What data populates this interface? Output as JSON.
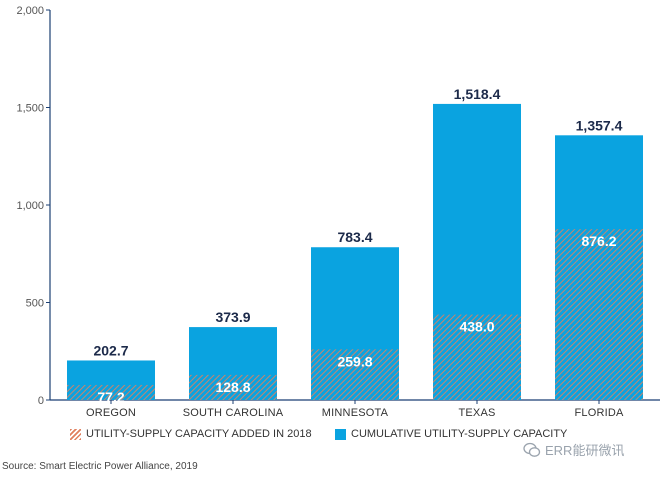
{
  "chart_data": {
    "type": "bar",
    "stacked": true,
    "categories": [
      "OREGON",
      "SOUTH CAROLINA",
      "MINNESOTA",
      "TEXAS",
      "FLORIDA"
    ],
    "series": [
      {
        "name": "UTILITY-SUPPLY CAPACITY ADDED IN 2018",
        "values": [
          77.2,
          128.8,
          259.8,
          438.0,
          876.2
        ],
        "labels": [
          "77.2",
          "128.8",
          "259.8",
          "438.0",
          "876.2"
        ]
      },
      {
        "name": "CUMULATIVE UTILITY-SUPPLY CAPACITY",
        "values": [
          202.7,
          373.9,
          783.4,
          1518.4,
          1357.4
        ],
        "labels": [
          "202.7",
          "373.9",
          "783.4",
          "1,518.4",
          "1,357.4"
        ]
      }
    ],
    "yticks": [
      0,
      500,
      1000,
      1500,
      2000
    ],
    "ytick_labels": [
      "0",
      "500",
      "1,000",
      "1,500",
      "2,000"
    ],
    "ylim": [
      0,
      2000
    ],
    "title": "",
    "xlabel": "",
    "ylabel": "",
    "legend_position": "bottom"
  },
  "colors": {
    "cumulative": "#0aa3e0",
    "added_hatch": "#e0805f",
    "axis": "#1b3f73"
  },
  "source": "Source: Smart Electric Power Alliance, 2019",
  "watermark": "ERR能研微讯",
  "watermark_icon": "wechat-icon"
}
